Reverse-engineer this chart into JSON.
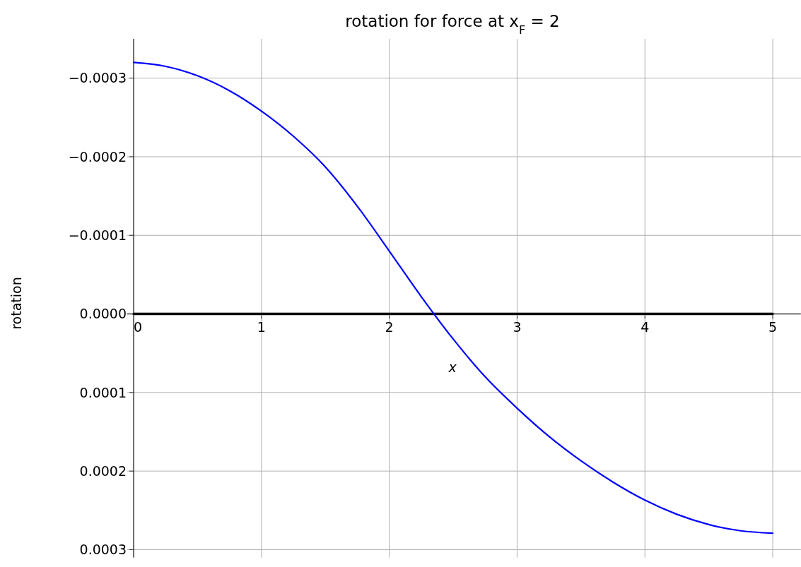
{
  "chart_data": {
    "type": "line",
    "title": "rotation for force at x$_{F}$ = 2",
    "xlabel": "x",
    "ylabel": "rotation",
    "xlim": [
      -0.05,
      5.22
    ],
    "ylim": [
      0.00031,
      -0.00035
    ],
    "xticks": [
      0,
      1,
      2,
      3,
      4,
      5
    ],
    "yticks": [
      {
        "value": -0.0003,
        "label": "−0.0003"
      },
      {
        "value": -0.0002,
        "label": "−0.0002"
      },
      {
        "value": -0.0001,
        "label": "−0.0001"
      },
      {
        "value": 0,
        "label": "0.0000"
      },
      {
        "value": 0.0001,
        "label": "0.0001"
      },
      {
        "value": 0.0002,
        "label": "0.0002"
      },
      {
        "value": 0.0003,
        "label": "0.0003"
      }
    ],
    "grid": true,
    "marker": "none",
    "line_style": "solid",
    "series": [
      {
        "color": "#000000",
        "x": [
          0,
          5
        ],
        "values": [
          0,
          0
        ]
      },
      {
        "color": "#0000ff",
        "x": [
          0,
          0.25,
          0.5,
          0.75,
          1,
          1.25,
          1.5,
          1.75,
          2,
          2.25,
          2.5,
          2.75,
          3,
          3.25,
          3.5,
          3.75,
          4,
          4.25,
          4.5,
          4.75,
          5
        ],
        "values": [
          -0.00032,
          -0.000315,
          -0.000303,
          -0.000284,
          -0.000258,
          -0.000226,
          -0.000187,
          -0.000137,
          -8e-05,
          -2.2e-05,
          3.2e-05,
          8e-05,
          0.00012,
          0.000156,
          0.000187,
          0.000214,
          0.000237,
          0.000255,
          0.000268,
          0.000276,
          0.000279
        ]
      }
    ]
  }
}
